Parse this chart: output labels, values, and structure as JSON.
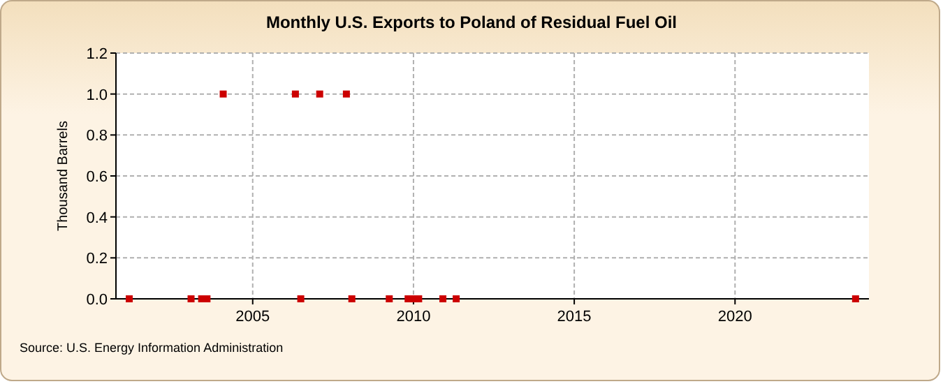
{
  "chart_data": {
    "type": "scatter",
    "title": "Monthly U.S. Exports to Poland of Residual Fuel Oil",
    "ylabel": "Thousand Barrels",
    "x": [
      "2001-03",
      "2003-02",
      "2003-06",
      "2003-08",
      "2004-02",
      "2006-05",
      "2006-07",
      "2007-02",
      "2007-12",
      "2008-02",
      "2009-04",
      "2009-11",
      "2010-01",
      "2010-03",
      "2010-12",
      "2011-05",
      "2023-10"
    ],
    "series": [
      {
        "color": "#cc0000",
        "values": [
          0,
          0,
          0,
          0,
          1,
          1,
          0,
          1,
          1,
          0,
          0,
          0,
          0,
          0,
          0,
          0,
          0
        ]
      }
    ],
    "xlim": [
      "2000-10",
      "2024-03"
    ],
    "xticks": [
      "2005",
      "2010",
      "2015",
      "2020"
    ],
    "ylim": [
      0,
      1.2
    ],
    "yticks": [
      {
        "value": 0,
        "label": "0.0"
      },
      {
        "value": 0.2,
        "label": "0.2"
      },
      {
        "value": 0.4,
        "label": "0.4"
      },
      {
        "value": 0.6,
        "label": "0.6"
      },
      {
        "value": 0.8,
        "label": "0.8"
      },
      {
        "value": 1,
        "label": "1.0"
      },
      {
        "value": 1.2,
        "label": "1.2"
      }
    ],
    "grid": true,
    "marker": "square",
    "annotations": [
      "Source: U.S. Energy Information Administration"
    ]
  }
}
